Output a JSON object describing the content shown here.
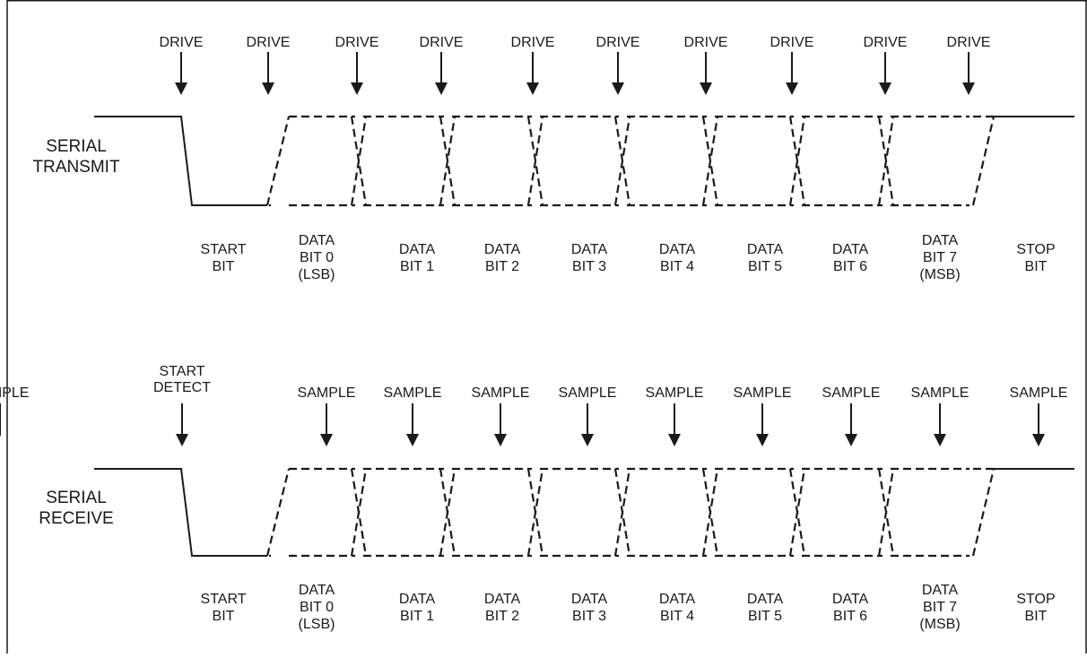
{
  "transmit": {
    "signal_label": [
      "SERIAL",
      "TRANSMIT"
    ],
    "markers": [
      "DRIVE",
      "DRIVE",
      "DRIVE",
      "DRIVE",
      "DRIVE",
      "DRIVE",
      "DRIVE",
      "DRIVE",
      "DRIVE",
      "DRIVE"
    ],
    "bits": [
      [
        "START",
        "BIT"
      ],
      [
        "DATA",
        "BIT 0",
        "(LSB)"
      ],
      [
        "DATA",
        "BIT 1"
      ],
      [
        "DATA",
        "BIT 2"
      ],
      [
        "DATA",
        "BIT 3"
      ],
      [
        "DATA",
        "BIT 4"
      ],
      [
        "DATA",
        "BIT 5"
      ],
      [
        "DATA",
        "BIT 6"
      ],
      [
        "DATA",
        "BIT 7",
        "(MSB)"
      ],
      [
        "STOP",
        "BIT"
      ]
    ]
  },
  "receive": {
    "signal_label": [
      "SERIAL",
      "RECEIVE"
    ],
    "markers": [
      [
        "START",
        "DETECT"
      ],
      [
        "SAMPLE"
      ],
      [
        "SAMPLE"
      ],
      [
        "SAMPLE"
      ],
      [
        "SAMPLE"
      ],
      [
        "SAMPLE"
      ],
      [
        "SAMPLE"
      ],
      [
        "SAMPLE"
      ],
      [
        "SAMPLE"
      ],
      [
        "SAMPLE"
      ],
      [
        "SAMPLE"
      ]
    ],
    "bits": [
      [
        "START",
        "BIT"
      ],
      [
        "DATA",
        "BIT 0",
        "(LSB)"
      ],
      [
        "DATA",
        "BIT 1"
      ],
      [
        "DATA",
        "BIT 2"
      ],
      [
        "DATA",
        "BIT 3"
      ],
      [
        "DATA",
        "BIT 4"
      ],
      [
        "DATA",
        "BIT 5"
      ],
      [
        "DATA",
        "BIT 6"
      ],
      [
        "DATA",
        "BIT 7",
        "(MSB)"
      ],
      [
        "STOP",
        "BIT"
      ]
    ]
  },
  "colors": {
    "ink": "#1a1a1a",
    "background": "#ffffff"
  }
}
